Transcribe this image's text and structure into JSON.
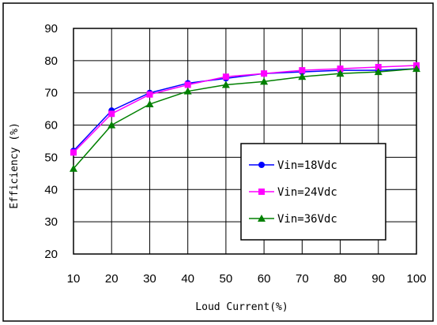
{
  "chart_data": {
    "type": "line",
    "xlabel": "Loud Current(%)",
    "ylabel": "Efficiency (%)",
    "xlim": [
      10,
      100
    ],
    "ylim": [
      20,
      90
    ],
    "x": [
      10,
      20,
      30,
      40,
      50,
      60,
      70,
      80,
      90,
      100
    ],
    "x_ticks": [
      "10",
      "20",
      "30",
      "40",
      "50",
      "60",
      "70",
      "80",
      "90",
      "100"
    ],
    "y_ticks": [
      "90",
      "80",
      "70",
      "60",
      "50",
      "40",
      "30",
      "20"
    ],
    "grid": true,
    "legend_position": "bottom-right",
    "series": [
      {
        "name": "Vin=18Vdc",
        "color": "#0000ff",
        "marker": "circle",
        "values": [
          52,
          64.5,
          70,
          73,
          74.5,
          76,
          76.5,
          77,
          77,
          77.5
        ]
      },
      {
        "name": "Vin=24Vdc",
        "color": "#ff00ff",
        "marker": "square",
        "values": [
          51.5,
          63.5,
          69.5,
          72.5,
          75,
          76,
          77,
          77.5,
          78,
          78.5
        ]
      },
      {
        "name": "Vin=36Vdc",
        "color": "#008000",
        "marker": "triangle",
        "values": [
          46.5,
          60,
          66.5,
          70.5,
          72.5,
          73.5,
          75,
          76,
          76.5,
          77.5
        ]
      }
    ]
  }
}
